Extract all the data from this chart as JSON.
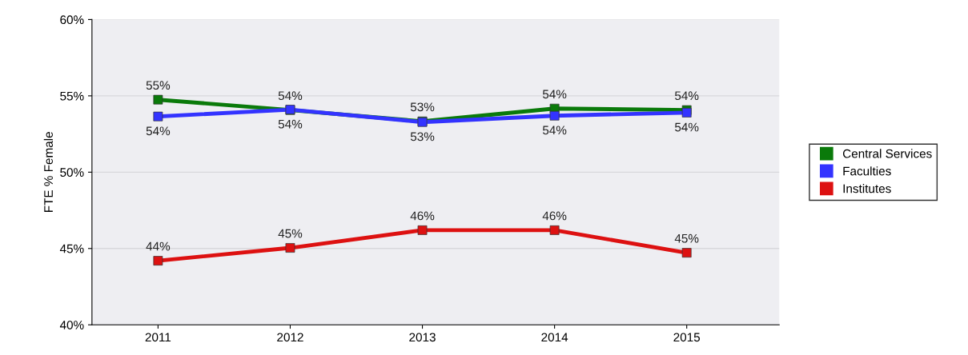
{
  "chart_data": {
    "type": "line",
    "ylabel": "FTE % Female",
    "categories": [
      "2011",
      "2012",
      "2013",
      "2014",
      "2015"
    ],
    "series": [
      {
        "name": "Central Services",
        "color": "#0a7a0a",
        "values": [
          54.75,
          54.07,
          53.33,
          54.17,
          54.07
        ],
        "value_labels": [
          "55%",
          "54%",
          "53%",
          "54%",
          "54%"
        ]
      },
      {
        "name": "Faculties",
        "color": "#3333ff",
        "values": [
          53.65,
          54.1,
          53.28,
          53.7,
          53.9
        ],
        "value_labels": [
          "54%",
          "54%",
          "53%",
          "54%",
          "54%"
        ]
      },
      {
        "name": "Institutes",
        "color": "#dd1111",
        "values": [
          44.2,
          45.04,
          46.2,
          46.2,
          44.72
        ],
        "value_labels": [
          "44%",
          "45%",
          "46%",
          "46%",
          "45%"
        ]
      }
    ],
    "ylim": [
      40,
      60
    ],
    "yticks": [
      {
        "value": 40,
        "label": "40%"
      },
      {
        "value": 45,
        "label": "45%"
      },
      {
        "value": 50,
        "label": "50%"
      },
      {
        "value": 55,
        "label": "55%"
      },
      {
        "value": 60,
        "label": "60%"
      }
    ],
    "grid": "y",
    "legend": "right",
    "marker": "square",
    "line_style": "solid"
  }
}
